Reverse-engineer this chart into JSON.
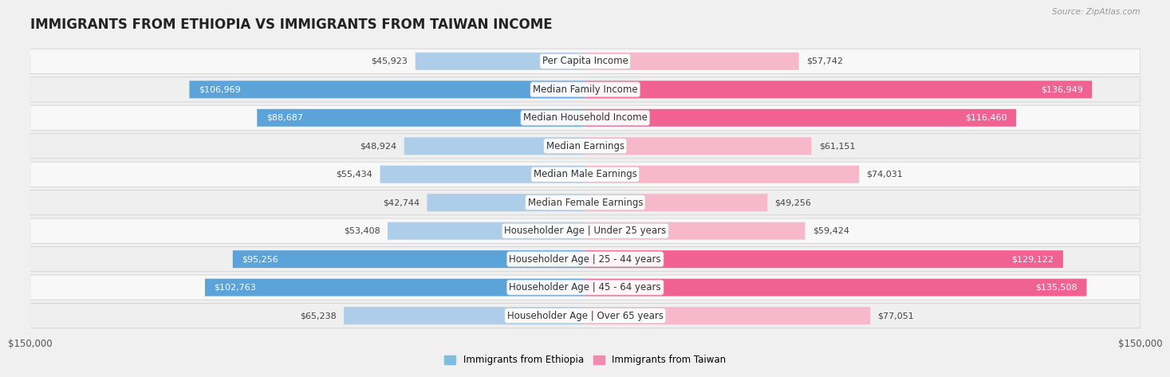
{
  "title": "IMMIGRANTS FROM ETHIOPIA VS IMMIGRANTS FROM TAIWAN INCOME",
  "source": "Source: ZipAtlas.com",
  "categories": [
    "Per Capita Income",
    "Median Family Income",
    "Median Household Income",
    "Median Earnings",
    "Median Male Earnings",
    "Median Female Earnings",
    "Householder Age | Under 25 years",
    "Householder Age | 25 - 44 years",
    "Householder Age | 45 - 64 years",
    "Householder Age | Over 65 years"
  ],
  "ethiopia_values": [
    45923,
    106969,
    88687,
    48924,
    55434,
    42744,
    53408,
    95256,
    102763,
    65238
  ],
  "taiwan_values": [
    57742,
    136949,
    116460,
    61151,
    74031,
    49256,
    59424,
    129122,
    135508,
    77051
  ],
  "ethiopia_color_light": "#aecde8",
  "ethiopia_color_dark": "#5ba3d9",
  "taiwan_color_light": "#f7b8cc",
  "taiwan_color_dark": "#f06292",
  "ethiopia_label": "Immigrants from Ethiopia",
  "taiwan_label": "Immigrants from Taiwan",
  "max_value": 150000,
  "bar_height": 0.62,
  "bg_color": "#f0f0f0",
  "row_bg": "#ffffff",
  "row_border": "#d0d0d0",
  "label_fontsize": 8.5,
  "title_fontsize": 12,
  "value_fontsize": 8,
  "axis_label": "$150,000",
  "legend_eth_color": "#7fbde0",
  "legend_tai_color": "#f08ab0"
}
